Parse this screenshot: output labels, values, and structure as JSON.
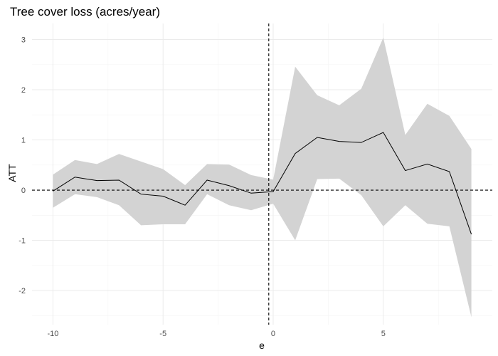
{
  "chart_data": {
    "type": "line",
    "title": "Tree cover loss (acres/year)",
    "xlabel": "e",
    "ylabel": "ATT",
    "xlim": [
      -10.95,
      9.95
    ],
    "ylim": [
      -2.68,
      3.32
    ],
    "x_ticks": [
      -10,
      -5,
      0,
      5
    ],
    "x_tick_labels": [
      "-10",
      "-5",
      "0",
      "5"
    ],
    "y_ticks": [
      -2,
      -1,
      0,
      1,
      2,
      3
    ],
    "y_tick_labels": [
      "-2",
      "-1",
      "0",
      "1",
      "2",
      "3"
    ],
    "grid": true,
    "reference_lines": {
      "vertical_x": -0.2,
      "horizontal_y": 0
    },
    "colors": {
      "line": "#000000",
      "band": "#d3d3d3",
      "reference": "#000000"
    },
    "x": [
      -10,
      -9,
      -8,
      -7,
      -6,
      -5,
      -4,
      -3,
      -2,
      -1,
      0,
      1,
      2,
      3,
      4,
      5,
      6,
      7,
      8,
      9
    ],
    "att": [
      -0.02,
      0.26,
      0.19,
      0.2,
      -0.08,
      -0.12,
      -0.3,
      0.2,
      0.09,
      -0.06,
      -0.03,
      0.73,
      1.05,
      0.97,
      0.95,
      1.15,
      0.39,
      0.52,
      0.37,
      -0.88
    ],
    "lower": [
      -0.35,
      -0.08,
      -0.14,
      -0.3,
      -0.7,
      -0.68,
      -0.68,
      -0.08,
      -0.3,
      -0.4,
      -0.27,
      -1.0,
      0.22,
      0.23,
      -0.1,
      -0.72,
      -0.3,
      -0.67,
      -0.72,
      -2.53
    ],
    "upper": [
      0.31,
      0.6,
      0.52,
      0.72,
      0.57,
      0.42,
      0.1,
      0.52,
      0.51,
      0.3,
      0.21,
      2.46,
      1.89,
      1.69,
      2.02,
      3.04,
      1.1,
      1.72,
      1.48,
      0.82
    ]
  }
}
